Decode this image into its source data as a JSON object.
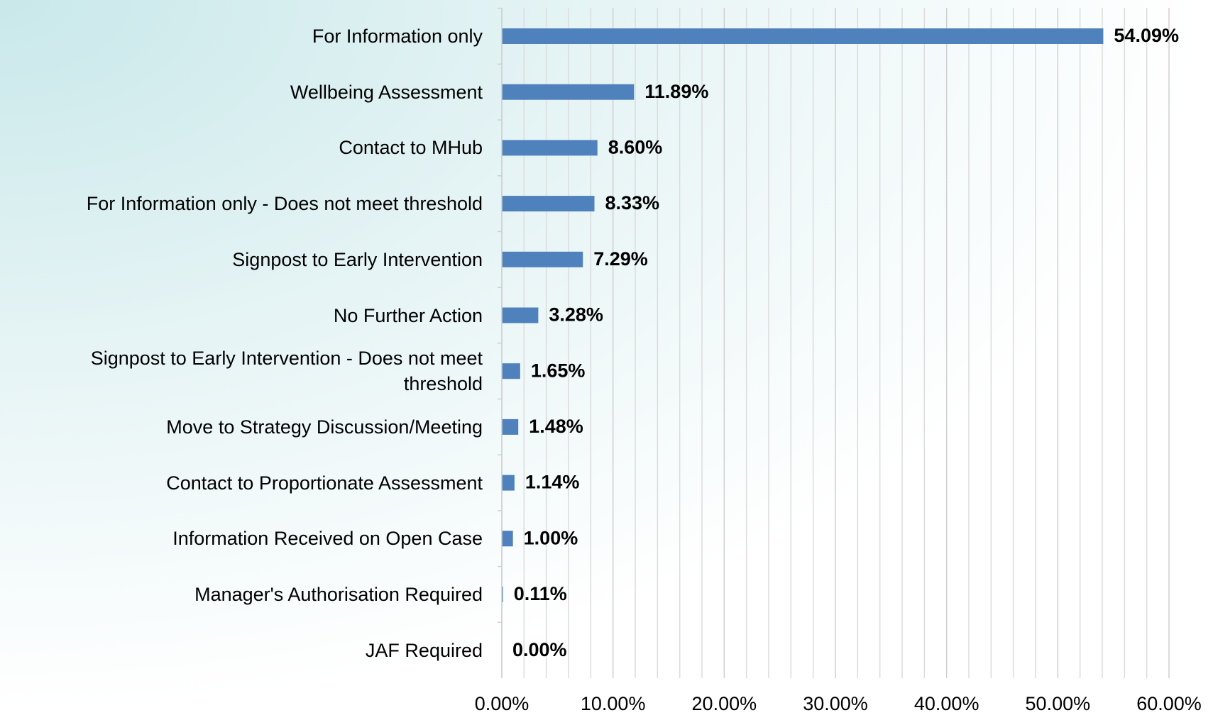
{
  "chart_data": {
    "type": "bar",
    "orientation": "horizontal",
    "categories": [
      "For Information only",
      "Wellbeing Assessment",
      "Contact to MHub",
      "For Information only - Does not meet threshold",
      "Signpost to Early Intervention",
      "No Further Action",
      "Signpost to Early Intervention - Does not meet threshold",
      "Move to Strategy Discussion/Meeting",
      "Contact to Proportionate Assessment",
      "Information Received on Open Case",
      "Manager's Authorisation Required",
      "JAF Required"
    ],
    "values": [
      54.09,
      11.89,
      8.6,
      8.33,
      7.29,
      3.28,
      1.65,
      1.48,
      1.14,
      1.0,
      0.11,
      0.0
    ],
    "value_labels": [
      "54.09%",
      "11.89%",
      "8.60%",
      "8.33%",
      "7.29%",
      "3.28%",
      "1.65%",
      "1.48%",
      "1.14%",
      "1.00%",
      "0.11%",
      "0.00%"
    ],
    "color": "#4f81bd",
    "xlim": [
      0,
      60
    ],
    "xticks": [
      {
        "value": 0,
        "label": "0.00%"
      },
      {
        "value": 10,
        "label": "10.00%"
      },
      {
        "value": 20,
        "label": "20.00%"
      },
      {
        "value": 30,
        "label": "30.00%"
      },
      {
        "value": 40,
        "label": "40.00%"
      },
      {
        "value": 50,
        "label": "50.00%"
      },
      {
        "value": 60,
        "label": "60.00%"
      }
    ],
    "minor_xticks": [
      2,
      4,
      6,
      8,
      12,
      14,
      16,
      18,
      22,
      24,
      26,
      28,
      32,
      34,
      36,
      38,
      42,
      44,
      46,
      48,
      52,
      54,
      56,
      58
    ],
    "grid": true
  }
}
